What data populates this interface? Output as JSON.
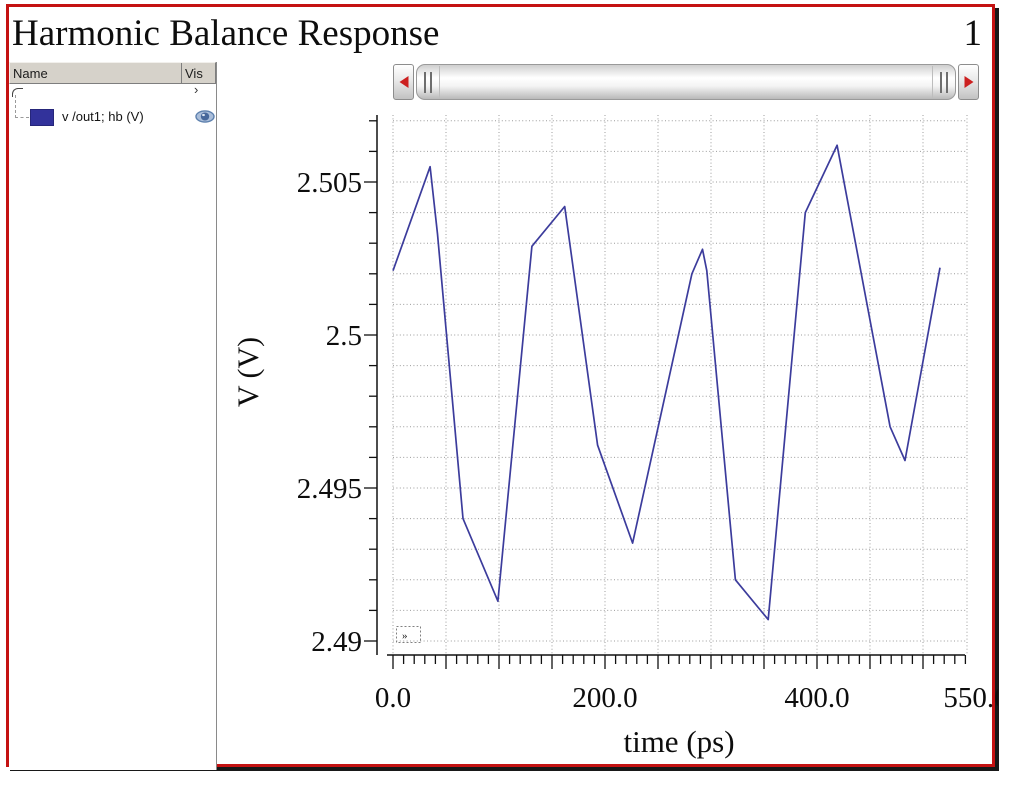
{
  "window": {
    "title": "Harmonic Balance Response",
    "page_number": "1",
    "border_color": "#c41212"
  },
  "signal_panel": {
    "name_column_label": "Name",
    "vis_column_label": "Vis",
    "clipped_row_chevron": "›",
    "traces": [
      {
        "label": "v /out1; hb (V)",
        "swatch_color": "#32329b",
        "visible": true
      }
    ]
  },
  "chart_data": {
    "type": "line",
    "title": "",
    "xlabel": "time (ps)",
    "ylabel": "V (V)",
    "xlim": [
      0,
      541
    ],
    "ylim": [
      2.4895,
      2.5072
    ],
    "grid": true,
    "x_ticks": [
      {
        "value": 0,
        "label": "0.0"
      },
      {
        "value": 200,
        "label": "200.0"
      },
      {
        "value": 400,
        "label": "400.0"
      },
      {
        "value": 550,
        "label": "550.0"
      }
    ],
    "y_ticks": [
      {
        "value": 2.505,
        "label": "2.505"
      },
      {
        "value": 2.5,
        "label": "2.5"
      },
      {
        "value": 2.495,
        "label": "2.495"
      },
      {
        "value": 2.49,
        "label": "2.49"
      }
    ],
    "x_minor_step": 10,
    "x_major_step": 50,
    "y_minor_step": 0.001,
    "corner_badge": "»",
    "series": [
      {
        "name": "v /out1; hb (V)",
        "color": "#3c3c9c",
        "points": [
          [
            0,
            2.5021
          ],
          [
            35,
            2.5055
          ],
          [
            42,
            2.5033
          ],
          [
            66,
            2.494
          ],
          [
            99,
            2.4913
          ],
          [
            131,
            2.5029
          ],
          [
            162,
            2.5042
          ],
          [
            193,
            2.4964
          ],
          [
            226,
            2.4932
          ],
          [
            282,
            2.502
          ],
          [
            292,
            2.5028
          ],
          [
            296,
            2.5021
          ],
          [
            323,
            2.492
          ],
          [
            354,
            2.4907
          ],
          [
            389,
            2.504
          ],
          [
            419,
            2.5062
          ],
          [
            469,
            2.497
          ],
          [
            483,
            2.4959
          ],
          [
            516,
            2.5022
          ]
        ]
      }
    ]
  }
}
